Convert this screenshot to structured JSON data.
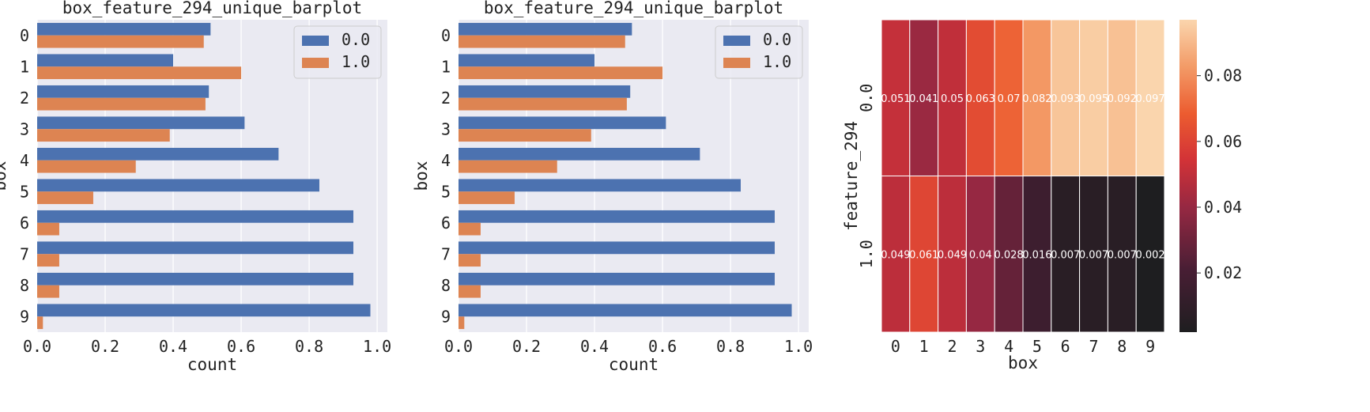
{
  "colors": {
    "series_0": "#4c72b0",
    "series_1": "#dd8452",
    "plot_bg": "#eaeaf2",
    "grid": "#ffffff",
    "heatmap_colormap": "rocket"
  },
  "chart_data": [
    {
      "type": "bar",
      "orientation": "horizontal",
      "title": "box_feature_294_unique_barplot",
      "xlabel": "count",
      "ylabel": "box",
      "categories": [
        "0",
        "1",
        "2",
        "3",
        "4",
        "5",
        "6",
        "7",
        "8",
        "9"
      ],
      "xlim": [
        0,
        1.03
      ],
      "xticks": [
        "0.0",
        "0.2",
        "0.4",
        "0.6",
        "0.8",
        "1.0"
      ],
      "grid": true,
      "legend_position": "top-right",
      "series": [
        {
          "name": "0.0",
          "values": [
            0.51,
            0.4,
            0.505,
            0.61,
            0.71,
            0.83,
            0.93,
            0.93,
            0.93,
            0.98
          ]
        },
        {
          "name": "1.0",
          "values": [
            0.49,
            0.6,
            0.495,
            0.39,
            0.29,
            0.165,
            0.065,
            0.065,
            0.065,
            0.017
          ]
        }
      ]
    },
    {
      "type": "bar",
      "orientation": "horizontal",
      "title": "box_feature_294_unique_barplot",
      "xlabel": "count",
      "ylabel": "box",
      "categories": [
        "0",
        "1",
        "2",
        "3",
        "4",
        "5",
        "6",
        "7",
        "8",
        "9"
      ],
      "xlim": [
        0,
        1.03
      ],
      "xticks": [
        "0.0",
        "0.2",
        "0.4",
        "0.6",
        "0.8",
        "1.0"
      ],
      "grid": true,
      "legend_position": "top-right",
      "series": [
        {
          "name": "0.0",
          "values": [
            0.51,
            0.4,
            0.505,
            0.61,
            0.71,
            0.83,
            0.93,
            0.93,
            0.93,
            0.98
          ]
        },
        {
          "name": "1.0",
          "values": [
            0.49,
            0.6,
            0.495,
            0.39,
            0.29,
            0.165,
            0.065,
            0.065,
            0.065,
            0.017
          ]
        }
      ]
    },
    {
      "type": "heatmap",
      "xlabel": "box",
      "ylabel": "feature_294",
      "x_categories": [
        "0",
        "1",
        "2",
        "3",
        "4",
        "5",
        "6",
        "7",
        "8",
        "9"
      ],
      "y_categories": [
        "0.0",
        "1.0"
      ],
      "values": [
        [
          0.051,
          0.041,
          0.05,
          0.063,
          0.07,
          0.082,
          0.093,
          0.095,
          0.092,
          0.097
        ],
        [
          0.049,
          0.061,
          0.049,
          0.04,
          0.028,
          0.016,
          0.007,
          0.007,
          0.007,
          0.002
        ]
      ],
      "cell_labels": [
        [
          "0.051",
          "0.041",
          "0.05",
          "0.063",
          "0.07",
          "0.082",
          "0.093",
          "0.095",
          "0.092",
          "0.097"
        ],
        [
          "0.049",
          "0.061",
          "0.049",
          "0.04",
          "0.028",
          "0.016",
          "0.007",
          "0.007",
          "0.007",
          "0.002"
        ]
      ],
      "colorbar": {
        "range": [
          0.002,
          0.097
        ],
        "ticks": [
          0.02,
          0.04,
          0.06,
          0.08
        ],
        "tick_labels": [
          "0.02",
          "0.04",
          "0.06",
          "0.08"
        ]
      }
    }
  ]
}
